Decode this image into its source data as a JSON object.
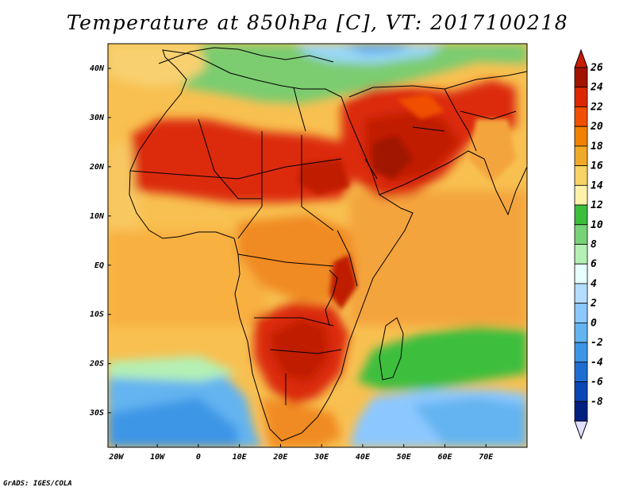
{
  "title": "Temperature at 850hPa [C], VT: 2017100218",
  "credit": "GrADS: IGES/COLA",
  "map": {
    "lat_labels": [
      "40N",
      "30N",
      "20N",
      "10N",
      "EQ",
      "10S",
      "20S",
      "30S"
    ],
    "lat_values": [
      40,
      30,
      20,
      10,
      0,
      -10,
      -20,
      -30
    ],
    "lon_labels": [
      "20W",
      "10W",
      "0",
      "10E",
      "20E",
      "30E",
      "40E",
      "50E",
      "60E",
      "70E"
    ],
    "lon_values": [
      -20,
      -10,
      0,
      10,
      20,
      30,
      40,
      50,
      60,
      70
    ],
    "lon_range": [
      -22,
      80
    ],
    "lat_range": [
      -37,
      45
    ]
  },
  "colorbar": {
    "labels": [
      "26",
      "24",
      "22",
      "20",
      "18",
      "16",
      "14",
      "12",
      "10",
      "8",
      "6",
      "4",
      "2",
      "0",
      "-2",
      "-4",
      "-6",
      "-8"
    ],
    "colors": [
      "#a01400",
      "#dc2800",
      "#f05000",
      "#f08200",
      "#f0aa28",
      "#f8d264",
      "#fff0aa",
      "#3cbe3c",
      "#78d278",
      "#b4f0b4",
      "#e6ffff",
      "#b4dcff",
      "#8cc8ff",
      "#64b4f0",
      "#3c96e6",
      "#1e6ed2",
      "#0a46b4",
      "#002080"
    ],
    "top_arrow_color": "#c81e00",
    "bottom_arrow_color": "#e0e0ff"
  }
}
